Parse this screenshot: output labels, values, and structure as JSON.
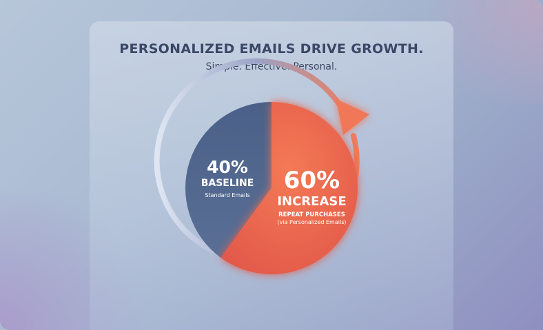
{
  "chart_data": {
    "type": "pie",
    "title": "PERSONALIZED EMAILS DRIVE GROWTH.",
    "subtitle": "Simple. Effective. Personal.",
    "slices": [
      {
        "value": 40,
        "percent_label": "40%",
        "label": "BASELINE",
        "sublabel": "Standard Emails",
        "color": "#4a6288"
      },
      {
        "value": 60,
        "percent_label": "60%",
        "label": "INCREASE",
        "sublabel": "REPEAT PURCHASES",
        "note": "(via Personalized Emails)",
        "color": "#f06a4a"
      }
    ]
  }
}
